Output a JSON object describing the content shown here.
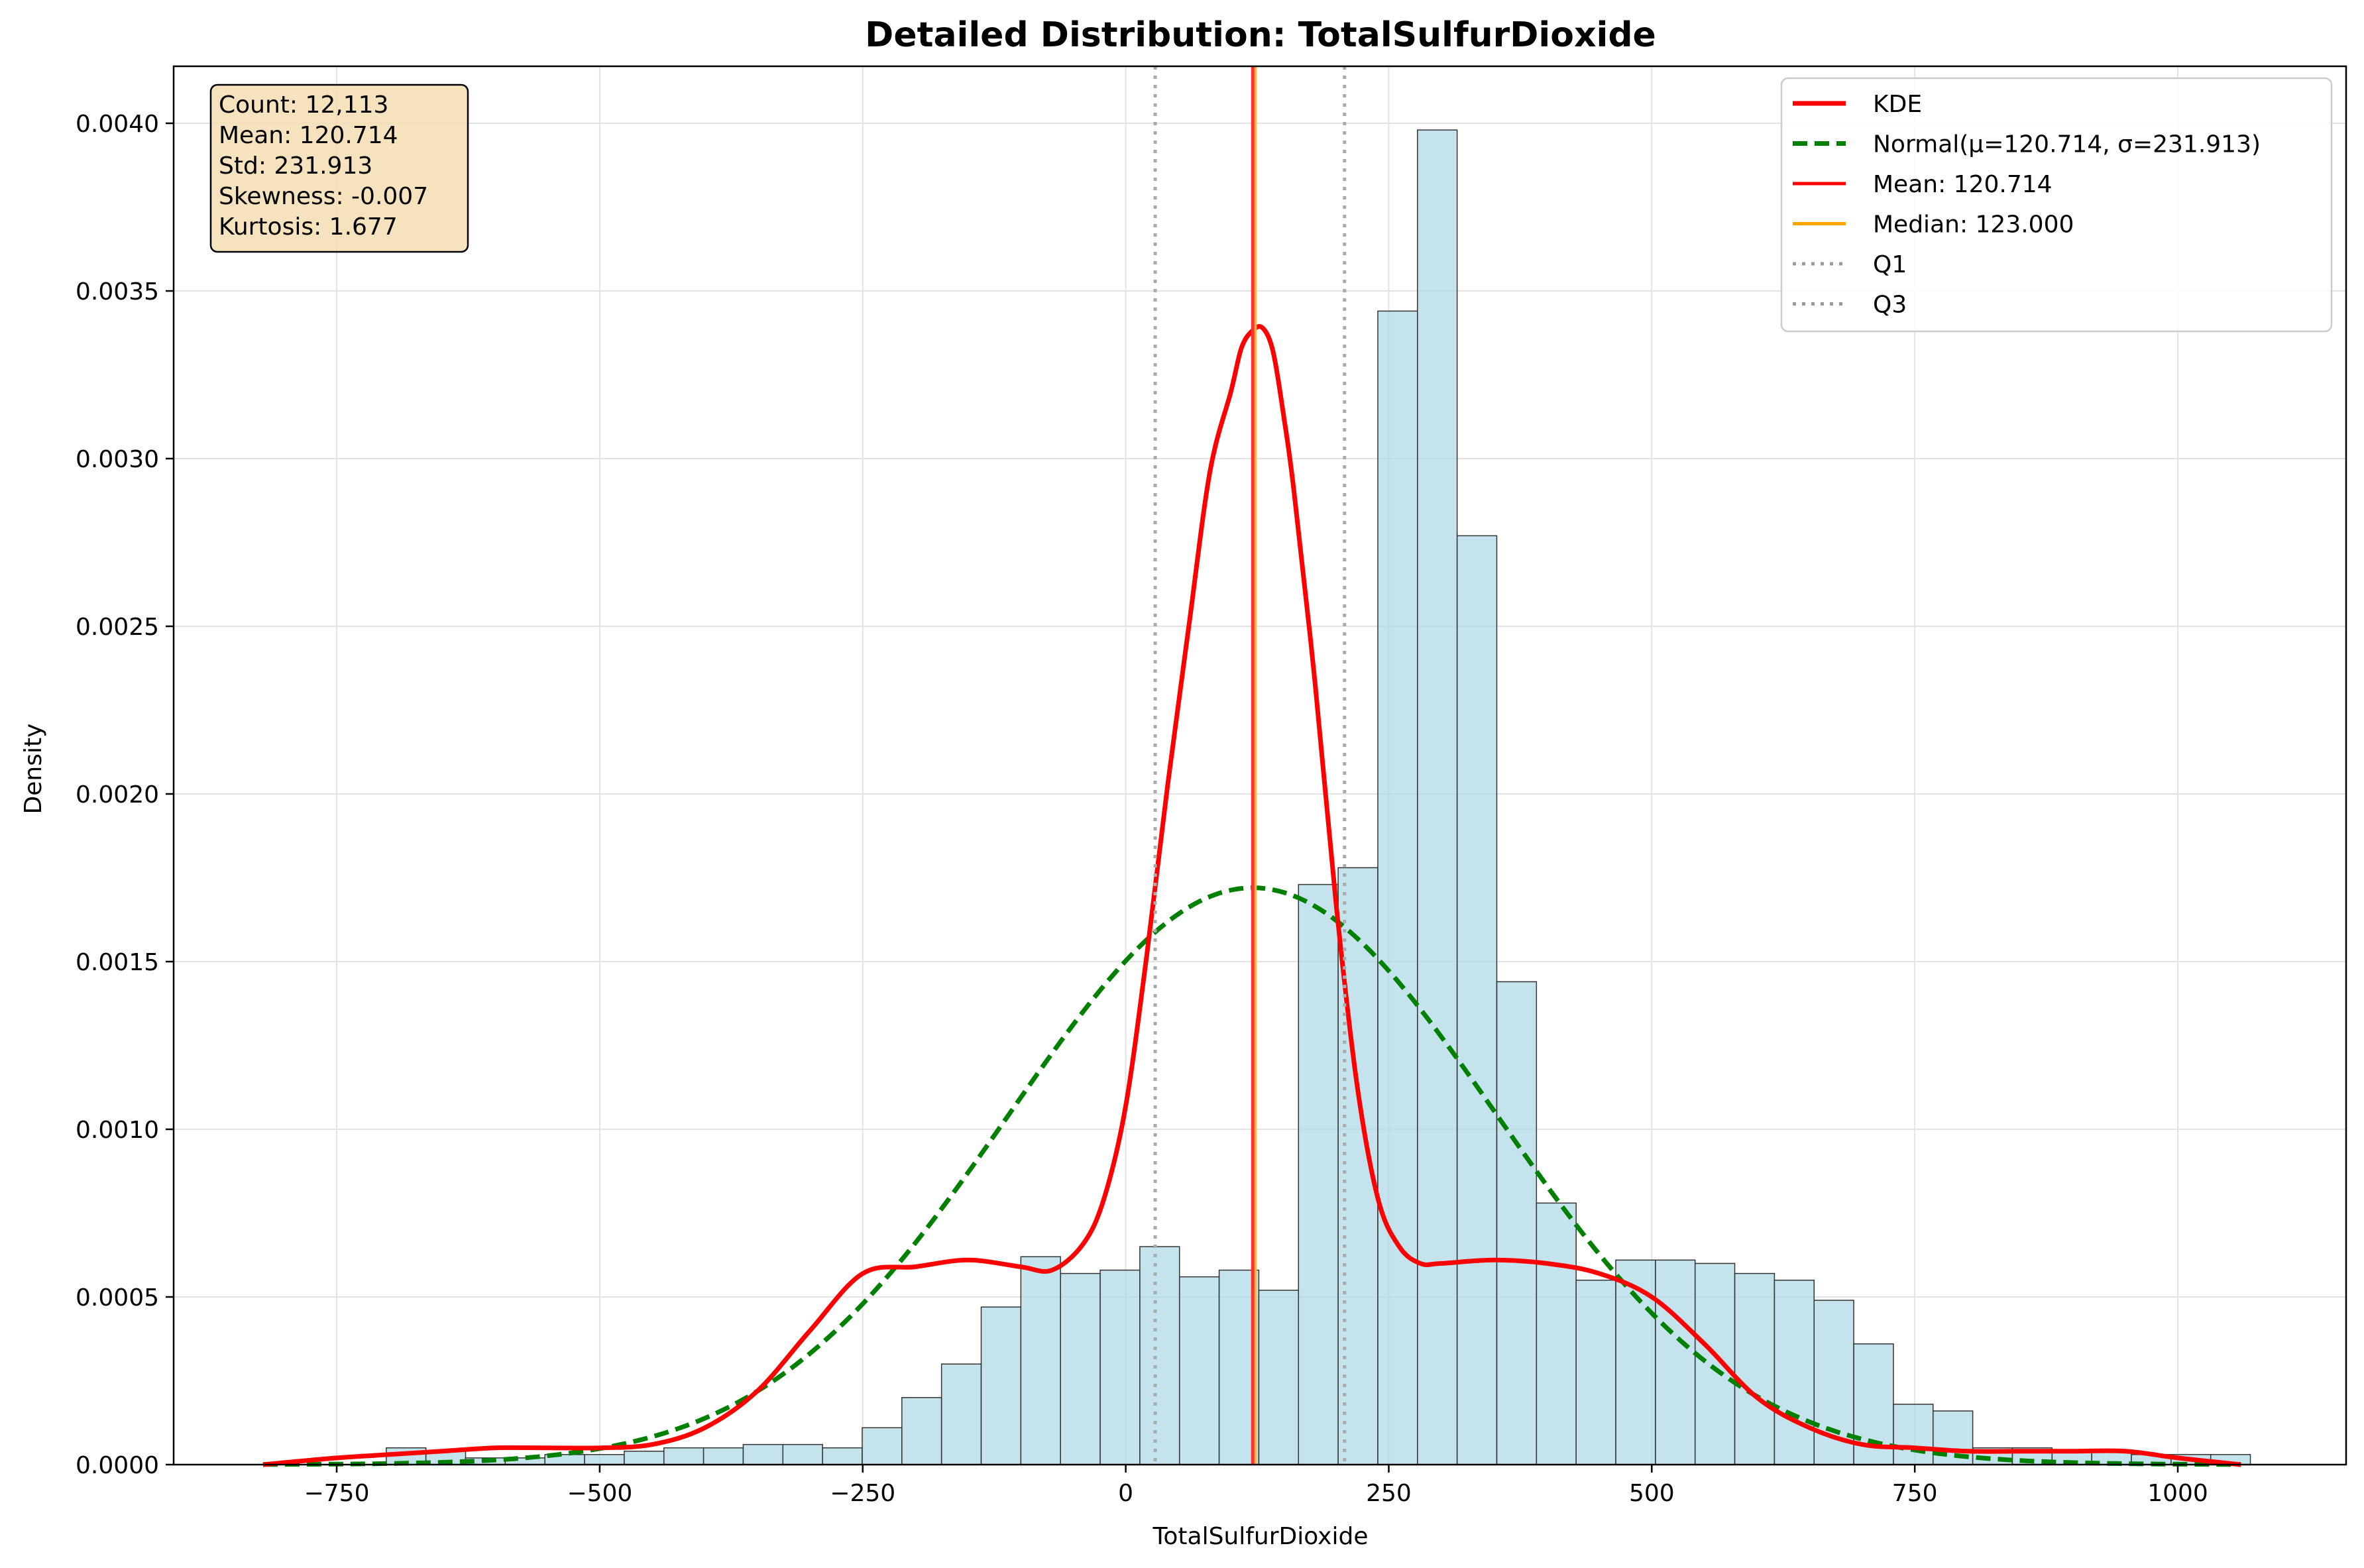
{
  "chart_data": {
    "type": "bar",
    "title": "Detailed Distribution: TotalSulfurDioxide",
    "xlabel": "TotalSulfurDioxide",
    "ylabel": "Density",
    "xlim": [
      -905,
      1160
    ],
    "ylim": [
      0,
      0.00417
    ],
    "grid": true,
    "legend_placement": "top-right",
    "x_ticks": [
      -750,
      -500,
      -250,
      0,
      250,
      500,
      750,
      1000
    ],
    "x_tick_labels": [
      "−750",
      "−500",
      "−250",
      "0",
      "250",
      "500",
      "750",
      "1000"
    ],
    "y_ticks": [
      0,
      0.0005,
      0.001,
      0.0015,
      0.002,
      0.0025,
      0.003,
      0.0035,
      0.004
    ],
    "y_tick_labels": [
      "0.0000",
      "0.0005",
      "0.0010",
      "0.0015",
      "0.0020",
      "0.0025",
      "0.0030",
      "0.0035",
      "0.0040"
    ],
    "histogram": {
      "bin_width": 37.7,
      "bin_start": -816,
      "values": [
        0.0,
        0.0,
        0.0,
        5e-05,
        4e-05,
        2e-05,
        2e-05,
        3e-05,
        3e-05,
        4e-05,
        5e-05,
        5e-05,
        6e-05,
        6e-05,
        5e-05,
        0.00011,
        0.0002,
        0.0003,
        0.00047,
        0.00062,
        0.00057,
        0.00058,
        0.00065,
        0.00056,
        0.00058,
        0.00052,
        0.00173,
        0.00178,
        0.00344,
        0.00398,
        0.00277,
        0.00144,
        0.00078,
        0.00055,
        0.00061,
        0.00061,
        0.0006,
        0.00057,
        0.00055,
        0.00049,
        0.00036,
        0.00018,
        0.00016,
        5e-05,
        5e-05,
        4e-05,
        4e-05,
        3e-05,
        3e-05,
        3e-05
      ],
      "fill": "#add8e6",
      "edge": "#333333"
    },
    "kde": {
      "x": [
        -820,
        -750,
        -700,
        -650,
        -600,
        -550,
        -500,
        -450,
        -400,
        -350,
        -300,
        -250,
        -200,
        -150,
        -100,
        -70,
        -40,
        -20,
        0,
        20,
        40,
        60,
        80,
        100,
        110,
        120,
        130,
        140,
        150,
        160,
        180,
        200,
        220,
        240,
        260,
        280,
        300,
        350,
        400,
        450,
        500,
        550,
        600,
        650,
        700,
        750,
        800,
        850,
        900,
        950,
        1000,
        1060
      ],
      "y": [
        0.0,
        2e-05,
        3e-05,
        4e-05,
        5e-05,
        5e-05,
        5e-05,
        6e-05,
        0.00011,
        0.00022,
        0.0004,
        0.00057,
        0.00059,
        0.00061,
        0.00059,
        0.00058,
        0.00066,
        0.0008,
        0.00107,
        0.00152,
        0.00203,
        0.0025,
        0.00296,
        0.0032,
        0.00333,
        0.00338,
        0.00339,
        0.00332,
        0.00313,
        0.0029,
        0.00233,
        0.00167,
        0.00113,
        0.00079,
        0.00065,
        0.0006,
        0.0006,
        0.00061,
        0.0006,
        0.00057,
        0.0005,
        0.00036,
        0.0002,
        0.00011,
        6e-05,
        5e-05,
        4e-05,
        4e-05,
        4e-05,
        4e-05,
        2e-05,
        0.0
      ]
    },
    "normal": {
      "mu": 120.714,
      "sigma": 231.913,
      "x_range": [
        -820,
        1060
      ]
    },
    "vlines": {
      "mean": 120.714,
      "median": 123.0,
      "q1": 28,
      "q3": 208
    },
    "legend": [
      {
        "label": "KDE",
        "color": "#ff0000",
        "style": "solid-thick"
      },
      {
        "label": "Normal(μ=120.714, σ=231.913)",
        "color": "#008000",
        "style": "dashed"
      },
      {
        "label": "Mean: 120.714",
        "color": "#ff0000",
        "style": "solid"
      },
      {
        "label": "Median: 123.000",
        "color": "#ffa500",
        "style": "solid"
      },
      {
        "label": "Q1",
        "color": "#999999",
        "style": "dotted"
      },
      {
        "label": "Q3",
        "color": "#999999",
        "style": "dotted"
      }
    ],
    "stats_box": [
      "Count: 12,113",
      "Mean: 120.714",
      "Std: 231.913",
      "Skewness: -0.007",
      "Kurtosis: 1.677"
    ],
    "colors": {
      "kde": "#ff0000",
      "normal": "#008000",
      "mean": "#ff3333",
      "median": "#ffb732",
      "quartile": "#aaaaaa",
      "stats_bg": "#f5deb3"
    }
  }
}
